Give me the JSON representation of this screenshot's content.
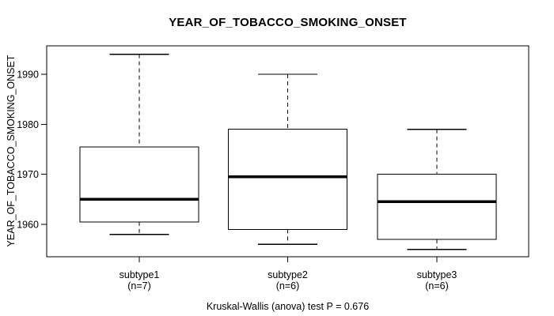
{
  "chart_data": {
    "type": "boxplot",
    "title": "YEAR_OF_TOBACCO_SMOKING_ONSET",
    "ylabel": "YEAR_OF_TOBACCO_SMOKING_ONSET",
    "xlabel": "",
    "footnote": "Kruskal-Wallis (anova) test P = 0.676",
    "yticks": [
      1960,
      1970,
      1980,
      1990
    ],
    "ylim": [
      1953.5,
      1995.7
    ],
    "grid": false,
    "legend": "none",
    "groups": [
      {
        "label": "subtype1",
        "sublabel": "(n=7)",
        "n": 7,
        "stats": {
          "min": 1958,
          "q1": 1960.5,
          "median": 1965,
          "q3": 1975.5,
          "max": 1994
        }
      },
      {
        "label": "subtype2",
        "sublabel": "(n=6)",
        "n": 6,
        "stats": {
          "min": 1956,
          "q1": 1959,
          "median": 1969.5,
          "q3": 1979,
          "max": 1990
        }
      },
      {
        "label": "subtype3",
        "sublabel": "(n=6)",
        "n": 6,
        "stats": {
          "min": 1955,
          "q1": 1957,
          "median": 1964.5,
          "q3": 1970,
          "max": 1979
        }
      }
    ],
    "colors": {
      "stroke": "#000000",
      "box_fill": "#ffffff",
      "background": "#ffffff"
    }
  }
}
